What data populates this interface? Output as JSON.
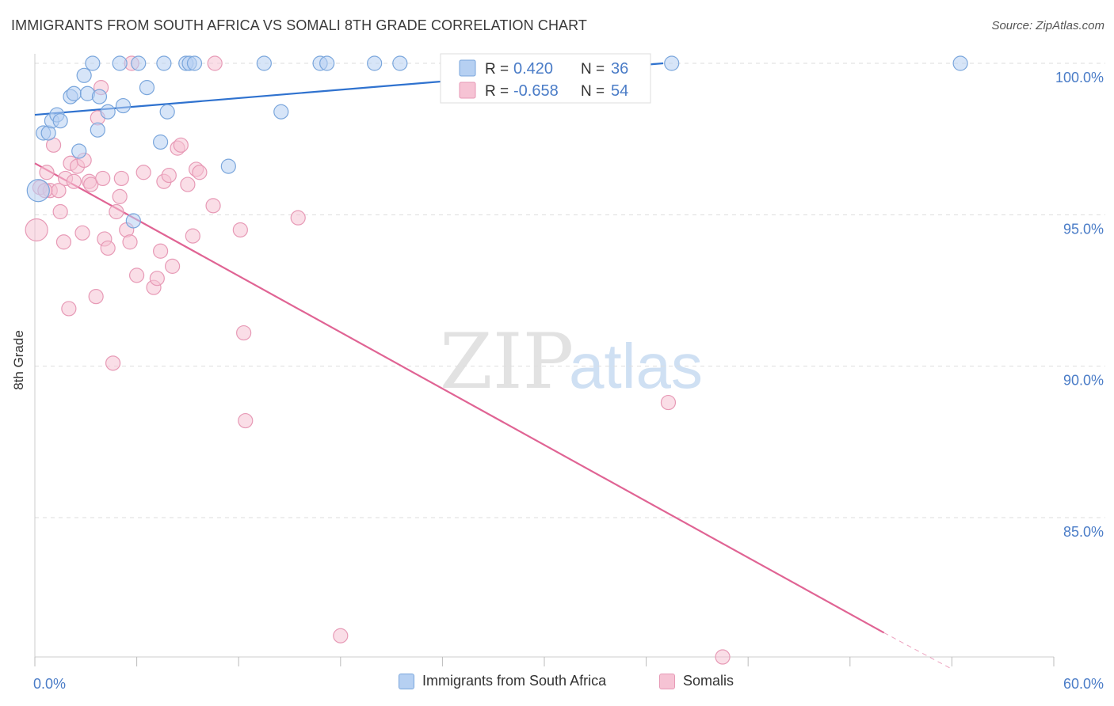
{
  "title": "IMMIGRANTS FROM SOUTH AFRICA VS SOMALI 8TH GRADE CORRELATION CHART",
  "source": "Source: ZipAtlas.com",
  "watermark": {
    "zip": "ZIP",
    "atlas": "atlas"
  },
  "colors": {
    "blue_fill": "#b6d0f2",
    "blue_stroke": "#7aa6dc",
    "blue_line": "#2f72cf",
    "pink_fill": "#f6c3d4",
    "pink_stroke": "#e79ab6",
    "pink_line": "#e06494",
    "tick_label": "#4a7cc7",
    "grid": "#dddddd"
  },
  "legend_stats": [
    {
      "r_label": "R =",
      "r_value": "0.420",
      "n_label": "N =",
      "n_value": "36",
      "series": "blue"
    },
    {
      "r_label": "R =",
      "r_value": "-0.658",
      "n_label": "N =",
      "n_value": "54",
      "series": "pink"
    }
  ],
  "chart_data": {
    "type": "scatter",
    "title": "IMMIGRANTS FROM SOUTH AFRICA VS SOMALI 8TH GRADE CORRELATION CHART",
    "xlabel": "",
    "ylabel": "8th Grade",
    "xlim": [
      0,
      60
    ],
    "ylim": [
      80.0,
      101.0
    ],
    "x_tick_labels": [
      "0.0%",
      "60.0%"
    ],
    "y_ticks": [
      85,
      90,
      95,
      100
    ],
    "y_tick_labels": [
      "85.0%",
      "90.0%",
      "95.0%",
      "100.0%"
    ],
    "grid": "horizontal dashed",
    "legend_position": "bottom",
    "series": [
      {
        "name": "Immigrants from South Africa",
        "color": "blue",
        "r": 0.42,
        "n": 36,
        "trend": {
          "x": [
            0,
            37
          ],
          "y": [
            98.3,
            100.0
          ]
        },
        "points": [
          [
            0.2,
            95.8
          ],
          [
            0.5,
            97.7
          ],
          [
            0.8,
            97.7
          ],
          [
            1.0,
            98.1
          ],
          [
            1.3,
            98.3
          ],
          [
            1.5,
            98.1
          ],
          [
            2.1,
            98.9
          ],
          [
            2.3,
            99.0
          ],
          [
            2.6,
            97.1
          ],
          [
            2.9,
            99.6
          ],
          [
            3.1,
            99.0
          ],
          [
            3.4,
            100.0
          ],
          [
            3.8,
            98.9
          ],
          [
            3.7,
            97.8
          ],
          [
            4.3,
            98.4
          ],
          [
            5.0,
            100.0
          ],
          [
            5.2,
            98.6
          ],
          [
            5.8,
            94.8
          ],
          [
            6.1,
            100.0
          ],
          [
            6.6,
            99.2
          ],
          [
            7.4,
            97.4
          ],
          [
            7.6,
            100.0
          ],
          [
            7.8,
            98.4
          ],
          [
            8.9,
            100.0
          ],
          [
            9.1,
            100.0
          ],
          [
            9.4,
            100.0
          ],
          [
            11.4,
            96.6
          ],
          [
            13.5,
            100.0
          ],
          [
            14.5,
            98.4
          ],
          [
            16.8,
            100.0
          ],
          [
            17.2,
            100.0
          ],
          [
            20.0,
            100.0
          ],
          [
            21.5,
            100.0
          ],
          [
            33.5,
            100.0
          ],
          [
            37.5,
            100.0
          ],
          [
            54.5,
            100.0
          ]
        ]
      },
      {
        "name": "Somalis",
        "color": "pink",
        "r": -0.658,
        "n": 54,
        "trend": {
          "x": [
            0,
            50
          ],
          "y": [
            96.7,
            81.2
          ]
        },
        "trend_dashed": {
          "x": [
            50,
            54
          ],
          "y": [
            81.2,
            80.0
          ]
        },
        "points": [
          [
            0.1,
            94.5
          ],
          [
            0.3,
            95.9
          ],
          [
            0.7,
            96.4
          ],
          [
            0.9,
            95.8
          ],
          [
            1.1,
            97.3
          ],
          [
            1.4,
            95.8
          ],
          [
            1.5,
            95.1
          ],
          [
            1.7,
            94.1
          ],
          [
            1.8,
            96.2
          ],
          [
            2.0,
            91.9
          ],
          [
            2.1,
            96.7
          ],
          [
            2.3,
            96.1
          ],
          [
            2.5,
            96.6
          ],
          [
            2.8,
            94.4
          ],
          [
            2.9,
            96.8
          ],
          [
            3.2,
            96.1
          ],
          [
            3.3,
            96.0
          ],
          [
            3.6,
            92.3
          ],
          [
            3.7,
            98.2
          ],
          [
            3.9,
            99.2
          ],
          [
            4.0,
            96.2
          ],
          [
            4.1,
            94.2
          ],
          [
            4.3,
            93.9
          ],
          [
            4.6,
            90.1
          ],
          [
            4.8,
            95.1
          ],
          [
            5.0,
            95.6
          ],
          [
            5.1,
            96.2
          ],
          [
            5.4,
            94.5
          ],
          [
            5.6,
            94.1
          ],
          [
            5.7,
            100.0
          ],
          [
            6.0,
            93.0
          ],
          [
            6.4,
            96.4
          ],
          [
            7.0,
            92.6
          ],
          [
            7.2,
            92.9
          ],
          [
            7.4,
            93.8
          ],
          [
            7.6,
            96.1
          ],
          [
            7.9,
            96.3
          ],
          [
            8.1,
            93.3
          ],
          [
            8.4,
            97.2
          ],
          [
            8.6,
            97.3
          ],
          [
            9.0,
            96.0
          ],
          [
            9.3,
            94.3
          ],
          [
            9.5,
            96.5
          ],
          [
            9.7,
            96.4
          ],
          [
            10.5,
            95.3
          ],
          [
            10.6,
            100.0
          ],
          [
            12.3,
            91.1
          ],
          [
            12.1,
            94.5
          ],
          [
            12.4,
            88.2
          ],
          [
            15.5,
            94.9
          ],
          [
            18.0,
            81.1
          ],
          [
            37.3,
            88.8
          ],
          [
            40.5,
            80.4
          ],
          [
            0.6,
            95.8
          ]
        ]
      }
    ]
  },
  "legend_bottom": [
    {
      "label": "Immigrants from South Africa",
      "color": "blue"
    },
    {
      "label": "Somalis",
      "color": "pink"
    }
  ]
}
